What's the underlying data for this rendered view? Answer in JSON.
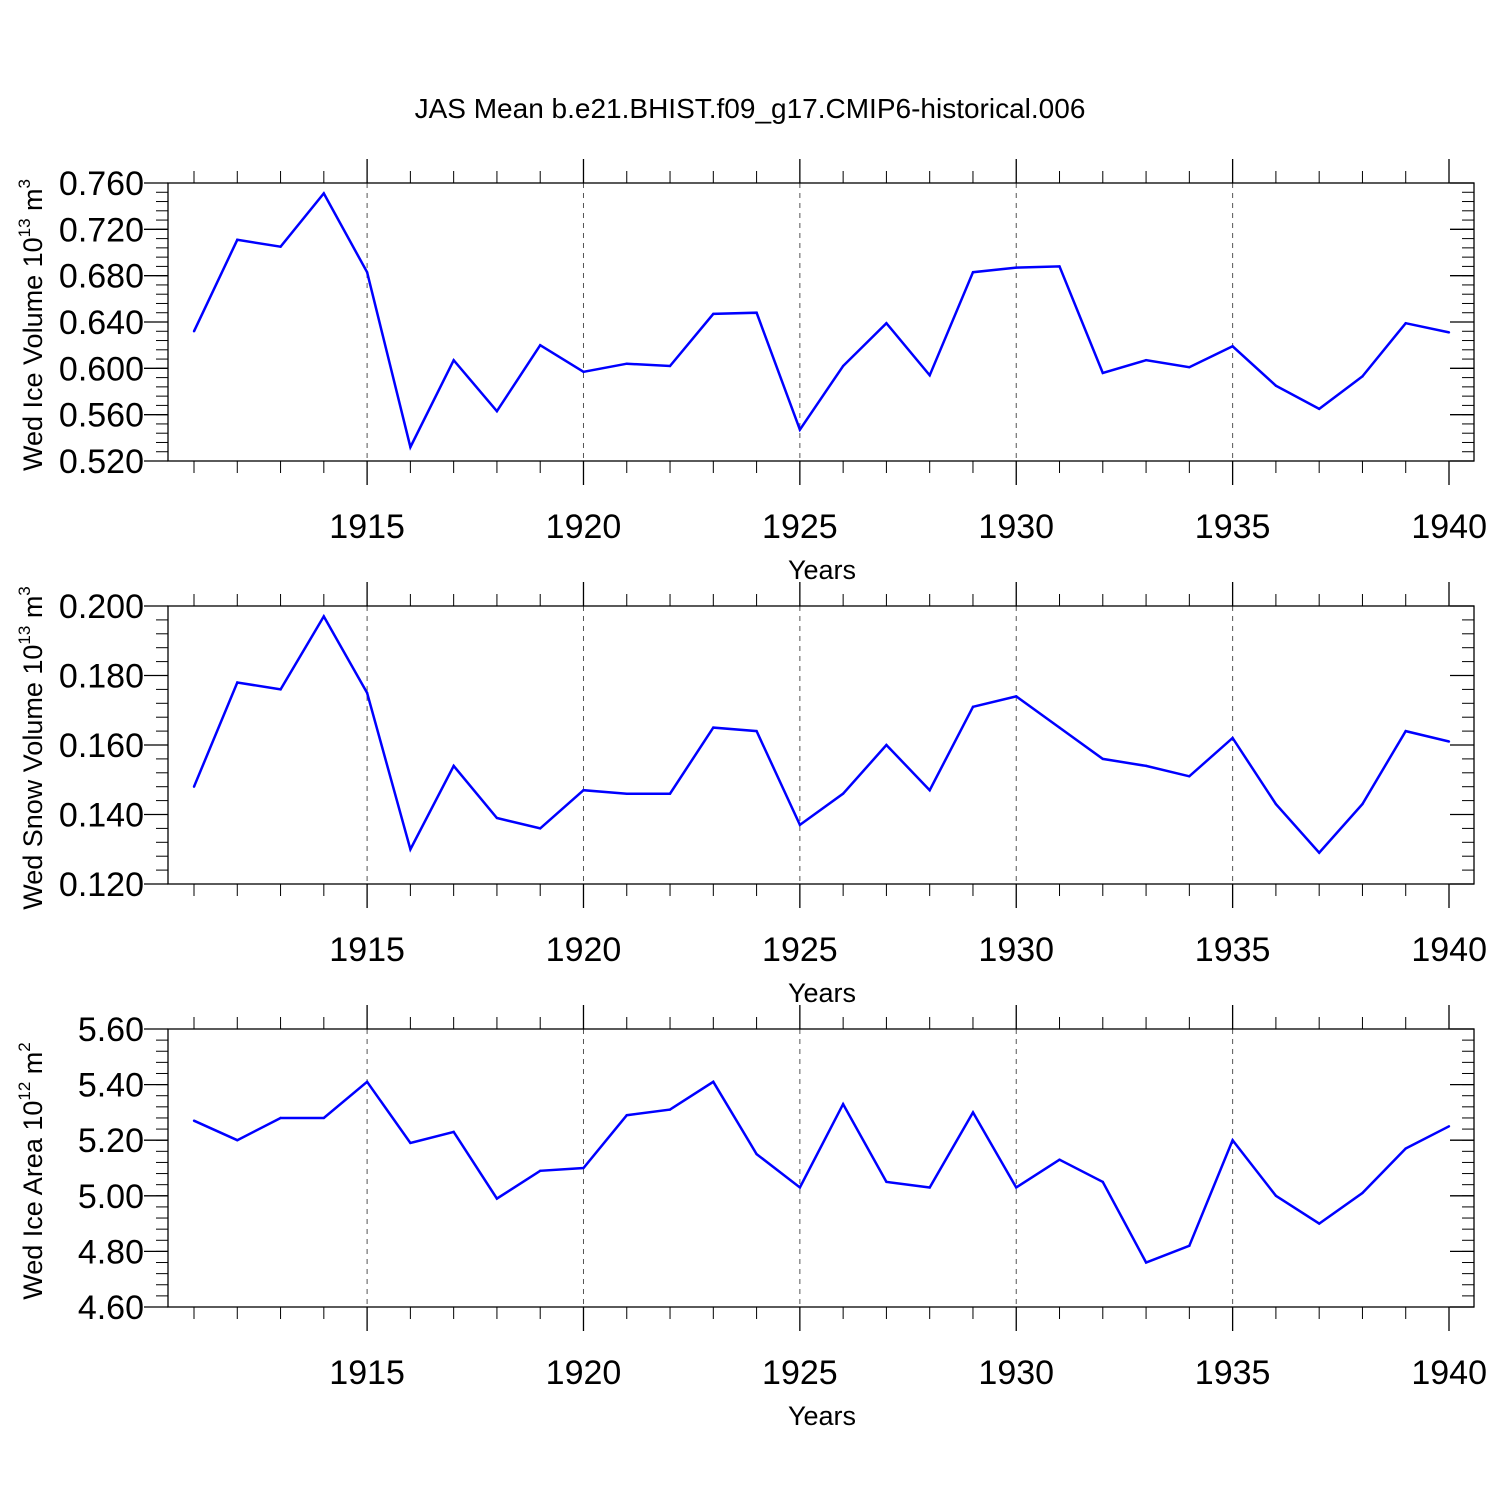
{
  "title": "JAS Mean b.e21.BHIST.f09_g17.CMIP6-historical.006",
  "chart_data": [
    {
      "type": "line",
      "ylabel": {
        "base": "Wed Ice Volume 10",
        "exp": "13",
        "unit": " m",
        "unit_exp": "3"
      },
      "xlabel": "Years",
      "xlim": [
        1911,
        1940
      ],
      "ylim": [
        0.52,
        0.76
      ],
      "yticks": [
        "0.520",
        "0.560",
        "0.600",
        "0.640",
        "0.680",
        "0.720",
        "0.760"
      ],
      "ytick_values": [
        0.52,
        0.56,
        0.6,
        0.64,
        0.68,
        0.72,
        0.76
      ],
      "yminor_step": 0.008,
      "xticks": [
        "1915",
        "1920",
        "1925",
        "1930",
        "1935",
        "1940"
      ],
      "xtick_values": [
        1915,
        1920,
        1925,
        1930,
        1935,
        1940
      ],
      "grid_x": [
        1915,
        1920,
        1925,
        1930,
        1935
      ],
      "line_color": "#0000ff",
      "x": [
        1911,
        1912,
        1913,
        1914,
        1915,
        1916,
        1917,
        1918,
        1919,
        1920,
        1921,
        1922,
        1923,
        1924,
        1925,
        1926,
        1927,
        1928,
        1929,
        1930,
        1931,
        1932,
        1933,
        1934,
        1935,
        1936,
        1937,
        1938,
        1939,
        1940
      ],
      "y": [
        0.632,
        0.711,
        0.705,
        0.751,
        0.683,
        0.532,
        0.607,
        0.563,
        0.62,
        0.597,
        0.604,
        0.602,
        0.647,
        0.648,
        0.547,
        0.602,
        0.639,
        0.594,
        0.683,
        0.687,
        0.688,
        0.596,
        0.607,
        0.601,
        0.619,
        0.585,
        0.565,
        0.593,
        0.639,
        0.631
      ]
    },
    {
      "type": "line",
      "ylabel": {
        "base": "Wed Snow Volume 10",
        "exp": "13",
        "unit": " m",
        "unit_exp": "3"
      },
      "xlabel": "Years",
      "xlim": [
        1911,
        1940
      ],
      "ylim": [
        0.12,
        0.2
      ],
      "yticks": [
        "0.120",
        "0.140",
        "0.160",
        "0.180",
        "0.200"
      ],
      "ytick_values": [
        0.12,
        0.14,
        0.16,
        0.18,
        0.2
      ],
      "yminor_step": 0.004,
      "xticks": [
        "1915",
        "1920",
        "1925",
        "1930",
        "1935",
        "1940"
      ],
      "xtick_values": [
        1915,
        1920,
        1925,
        1930,
        1935,
        1940
      ],
      "grid_x": [
        1915,
        1920,
        1925,
        1930,
        1935
      ],
      "line_color": "#0000ff",
      "x": [
        1911,
        1912,
        1913,
        1914,
        1915,
        1916,
        1917,
        1918,
        1919,
        1920,
        1921,
        1922,
        1923,
        1924,
        1925,
        1926,
        1927,
        1928,
        1929,
        1930,
        1931,
        1932,
        1933,
        1934,
        1935,
        1936,
        1937,
        1938,
        1939,
        1940
      ],
      "y": [
        0.148,
        0.178,
        0.176,
        0.197,
        0.175,
        0.13,
        0.154,
        0.139,
        0.136,
        0.147,
        0.146,
        0.146,
        0.165,
        0.164,
        0.137,
        0.146,
        0.16,
        0.147,
        0.171,
        0.174,
        0.165,
        0.156,
        0.154,
        0.151,
        0.162,
        0.143,
        0.129,
        0.143,
        0.164,
        0.161
      ]
    },
    {
      "type": "line",
      "ylabel": {
        "base": "Wed Ice Area 10",
        "exp": "12",
        "unit": " m",
        "unit_exp": "2"
      },
      "xlabel": "Years",
      "xlim": [
        1911,
        1940
      ],
      "ylim": [
        4.6,
        5.6
      ],
      "yticks": [
        "4.60",
        "4.80",
        "5.00",
        "5.20",
        "5.40",
        "5.60"
      ],
      "ytick_values": [
        4.6,
        4.8,
        5.0,
        5.2,
        5.4,
        5.6
      ],
      "yminor_step": 0.04,
      "xticks": [
        "1915",
        "1920",
        "1925",
        "1930",
        "1935",
        "1940"
      ],
      "xtick_values": [
        1915,
        1920,
        1925,
        1930,
        1935,
        1940
      ],
      "grid_x": [
        1915,
        1920,
        1925,
        1930,
        1935
      ],
      "line_color": "#0000ff",
      "x": [
        1911,
        1912,
        1913,
        1914,
        1915,
        1916,
        1917,
        1918,
        1919,
        1920,
        1921,
        1922,
        1923,
        1924,
        1925,
        1926,
        1927,
        1928,
        1929,
        1930,
        1931,
        1932,
        1933,
        1934,
        1935,
        1936,
        1937,
        1938,
        1939,
        1940
      ],
      "y": [
        5.27,
        5.2,
        5.28,
        5.28,
        5.41,
        5.19,
        5.23,
        4.99,
        5.09,
        5.1,
        5.29,
        5.31,
        5.41,
        5.15,
        5.03,
        5.33,
        5.05,
        5.03,
        5.3,
        5.03,
        5.13,
        5.05,
        4.76,
        4.82,
        5.2,
        5.0,
        4.9,
        5.01,
        5.17,
        5.25
      ]
    }
  ]
}
